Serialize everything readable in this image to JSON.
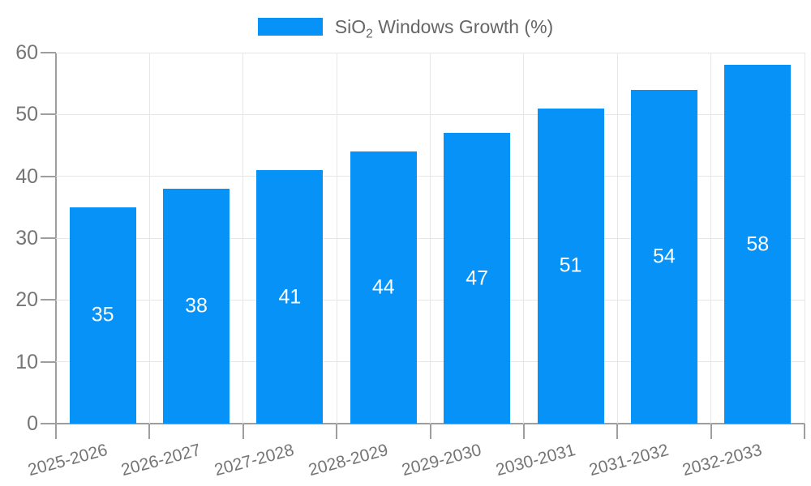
{
  "legend": {
    "label_prefix": "SiO",
    "label_sub": "2",
    "label_suffix": " Windows Growth (%)"
  },
  "chart_data": {
    "type": "bar",
    "title": "SiO₂ Windows Growth (%)",
    "series_name": "SiO₂ Windows Growth (%)",
    "categories": [
      "2025-2026",
      "2026-2027",
      "2027-2028",
      "2028-2029",
      "2029-2030",
      "2030-2031",
      "2031-2032",
      "2032-2033"
    ],
    "values": [
      35,
      38,
      41,
      44,
      47,
      51,
      54,
      58
    ],
    "xlabel": "",
    "ylabel": "",
    "ylim": [
      0,
      60
    ],
    "yticks": [
      0,
      10,
      20,
      30,
      40,
      50,
      60
    ],
    "grid": true,
    "legend_position": "top-center",
    "bar_label_position": "inside-center"
  },
  "colors": {
    "bar": "#0792f8",
    "grid": "#e7e7e7",
    "axis": "#9e9e9e",
    "tick_label": "#757575",
    "legend_text": "#666666",
    "bar_label": "#ffffff",
    "background": "#ffffff"
  }
}
